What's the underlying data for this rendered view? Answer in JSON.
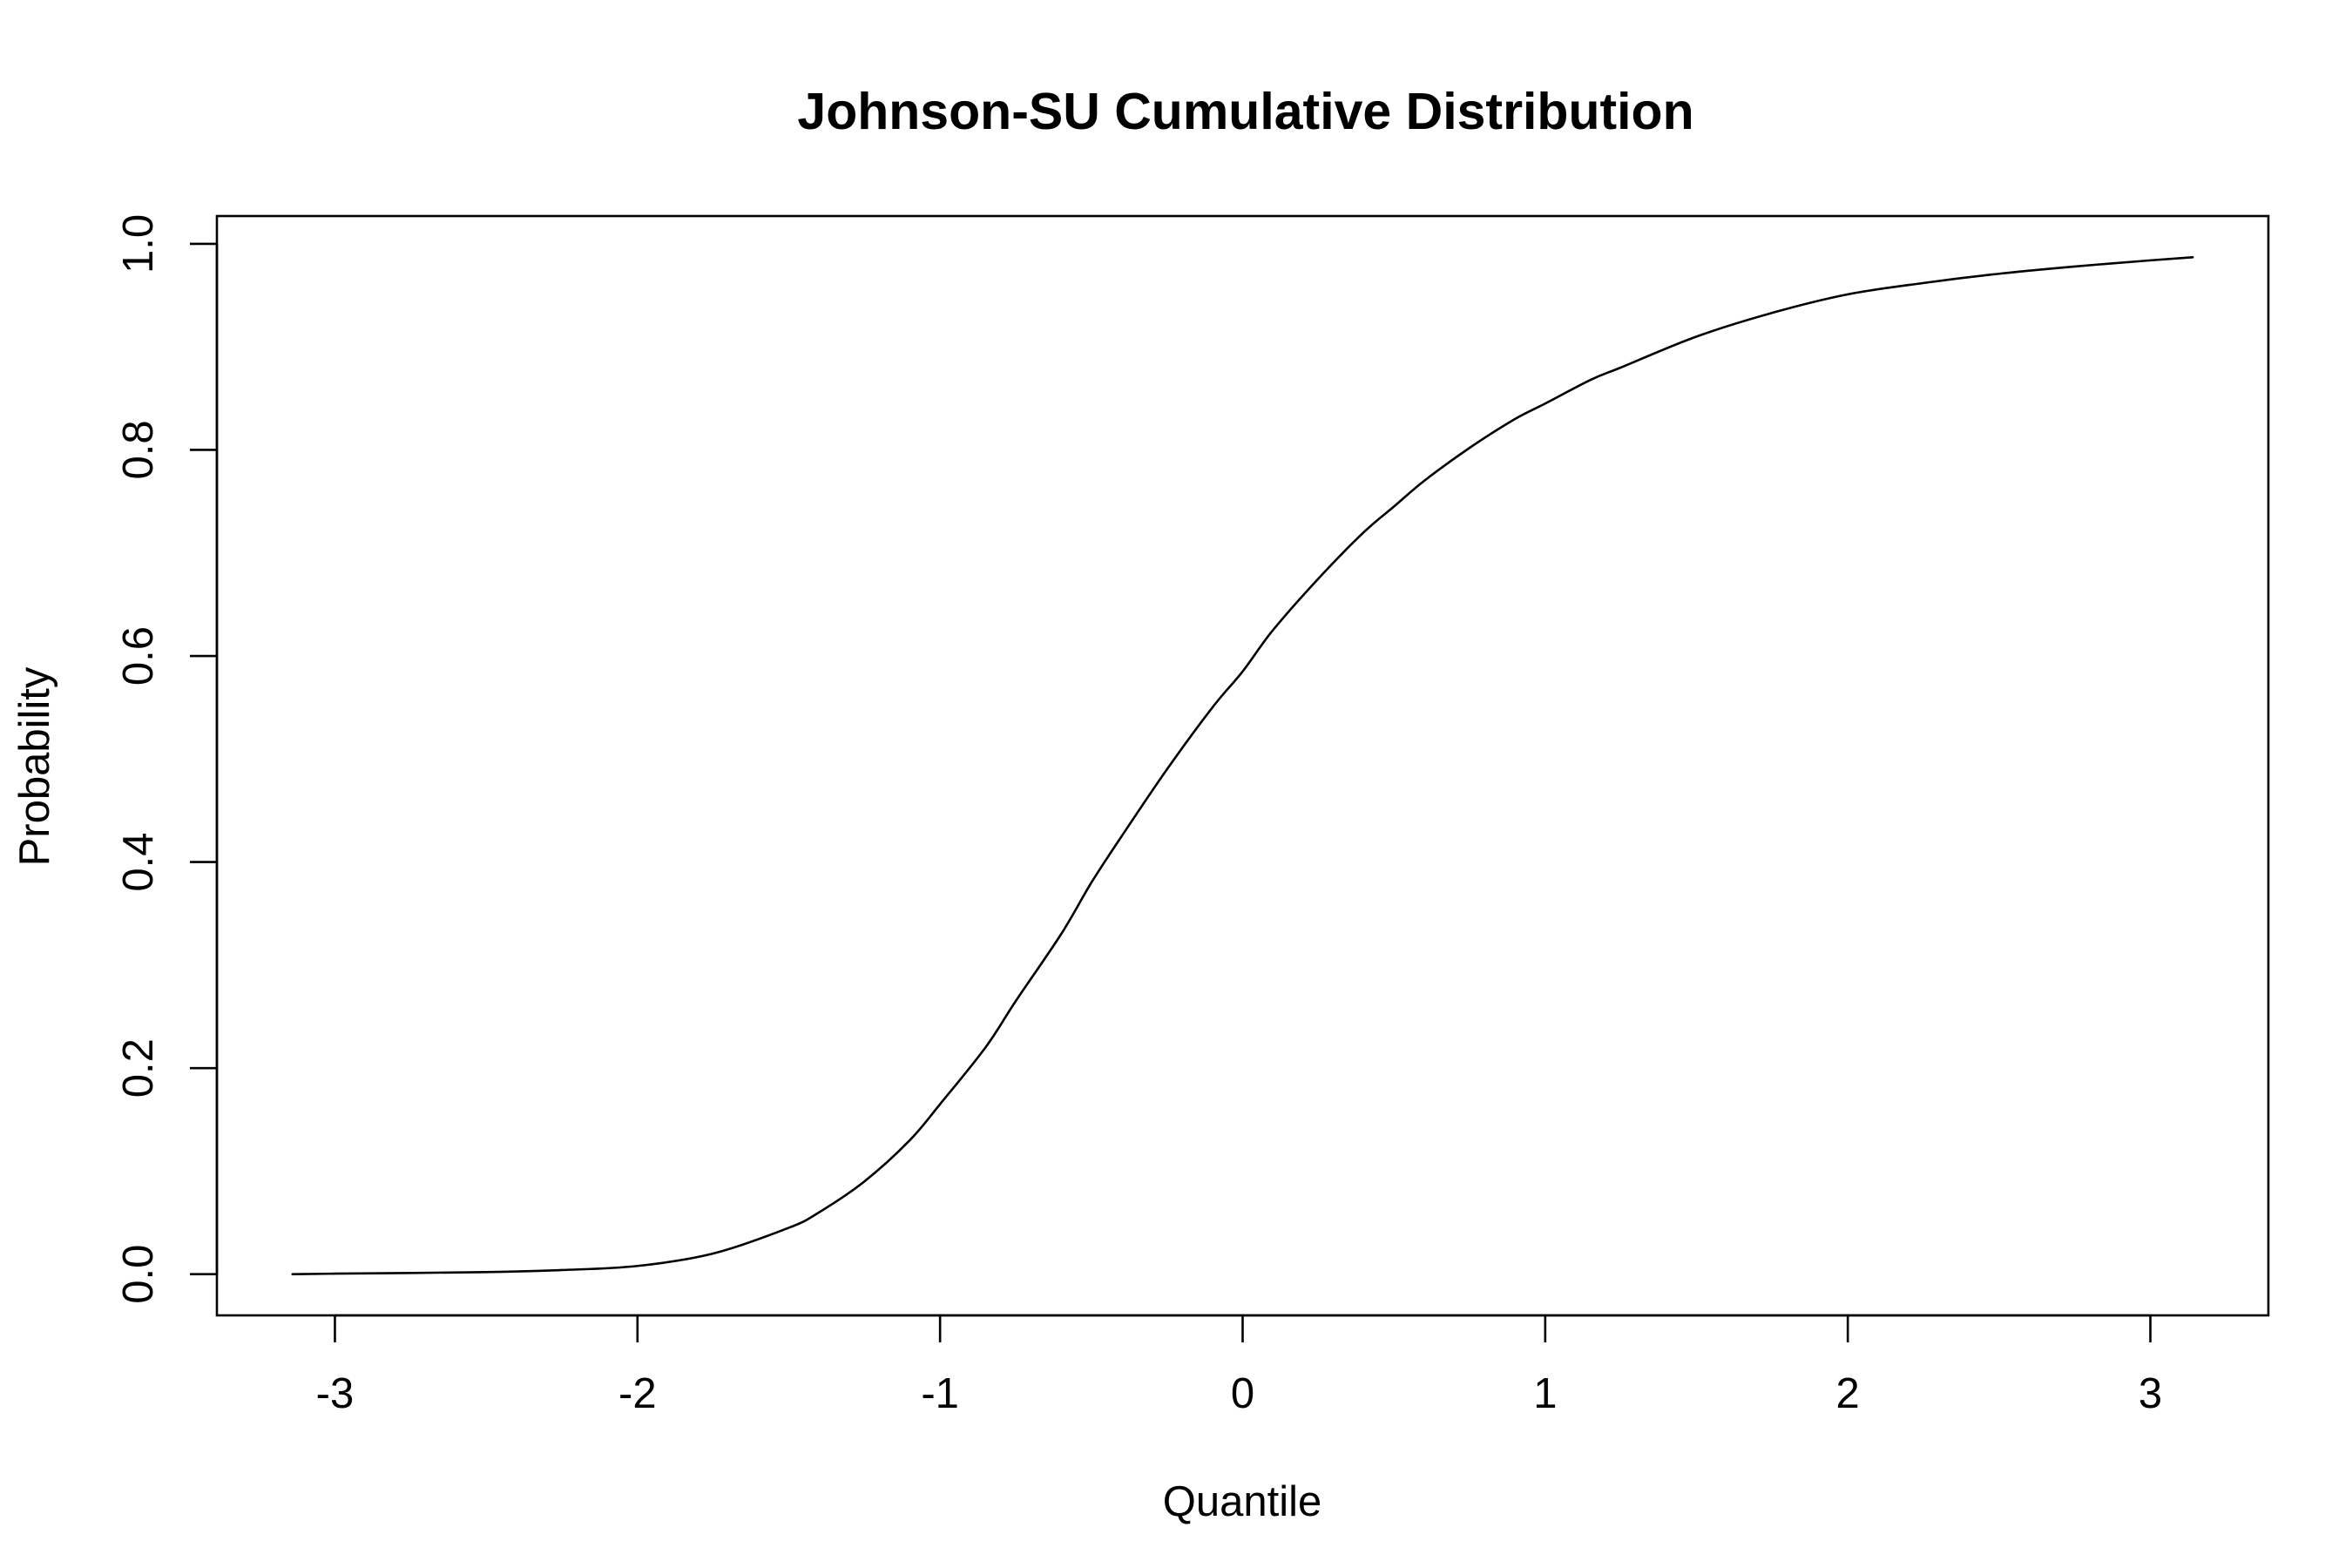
{
  "chart_data": {
    "type": "line",
    "title": "Johnson-SU Cumulative Distribution",
    "xlabel": "Quantile",
    "ylabel": "Probability",
    "xlim": [
      -3.39,
      3.39
    ],
    "ylim": [
      -0.04,
      1.027
    ],
    "grid": false,
    "legend": "none",
    "x_ticks": [
      -3,
      -2,
      -1,
      0,
      1,
      2,
      3
    ],
    "x_tick_labels": [
      "-3",
      "-2",
      "-1",
      "0",
      "1",
      "2",
      "3"
    ],
    "y_ticks": [
      0.0,
      0.2,
      0.4,
      0.6,
      0.8,
      1.0
    ],
    "y_tick_labels": [
      "0.0",
      "0.2",
      "0.4",
      "0.6",
      "0.8",
      "1.0"
    ],
    "line_color": "#000000",
    "series": [
      {
        "x": [
          -3.14,
          -3.0,
          -2.5,
          -2.25,
          -2.0,
          -1.75,
          -1.5,
          -1.4,
          -1.25,
          -1.1,
          -1.0,
          -0.85,
          -0.75,
          -0.6,
          -0.5,
          -0.4,
          -0.25,
          -0.1,
          0.0,
          0.1,
          0.25,
          0.4,
          0.5,
          0.6,
          0.75,
          0.9,
          1.0,
          1.15,
          1.25,
          1.5,
          1.75,
          2.0,
          2.25,
          2.5,
          2.75,
          3.0,
          3.14
        ],
        "y": [
          0.0,
          0.0005,
          0.002,
          0.004,
          0.008,
          0.02,
          0.045,
          0.06,
          0.09,
          0.13,
          0.165,
          0.22,
          0.265,
          0.33,
          0.38,
          0.425,
          0.49,
          0.55,
          0.585,
          0.625,
          0.675,
          0.72,
          0.745,
          0.77,
          0.802,
          0.83,
          0.845,
          0.868,
          0.88,
          0.91,
          0.933,
          0.951,
          0.962,
          0.971,
          0.978,
          0.984,
          0.987
        ]
      }
    ]
  }
}
